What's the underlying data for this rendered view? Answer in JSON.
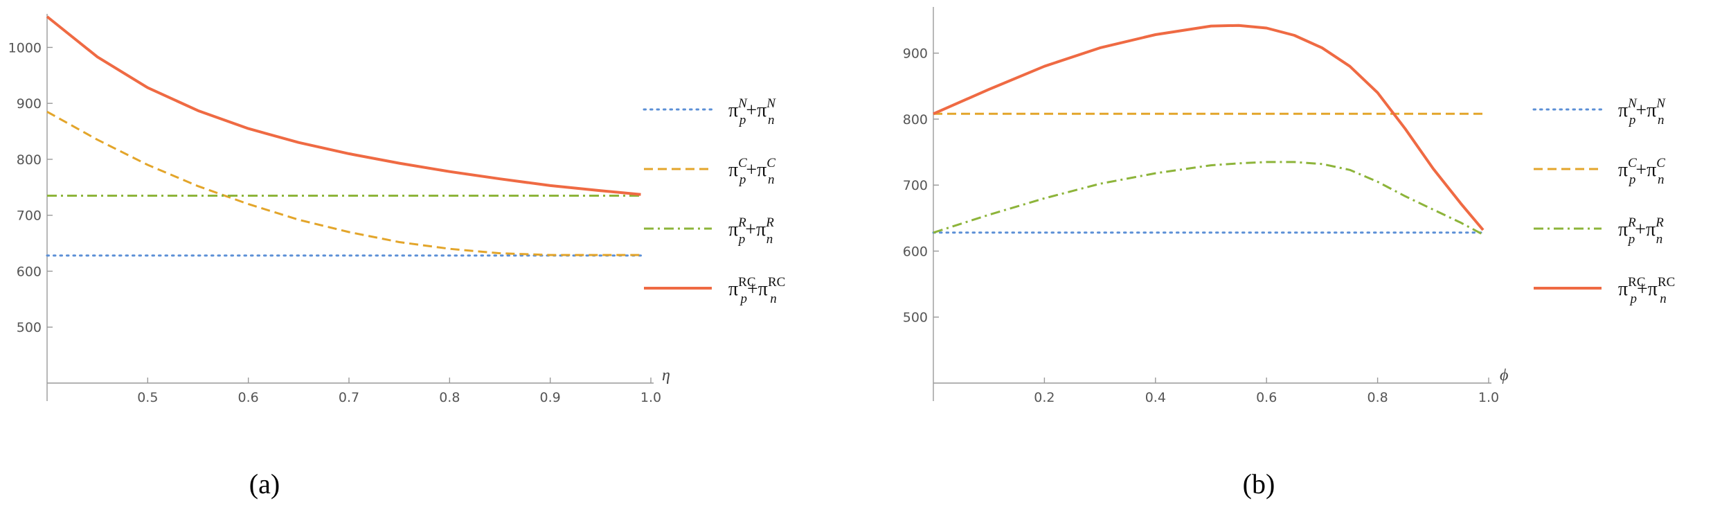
{
  "colors": {
    "series_N": "#5b8fd6",
    "series_C": "#e3a52a",
    "series_R": "#8db43a",
    "series_RC": "#ef6a43",
    "axis": "#999999"
  },
  "legend": {
    "pi": "π",
    "plus": "+",
    "sub_p": "p",
    "sub_n": "n",
    "items": [
      {
        "sup": "N",
        "style": "dotted",
        "color_key": "series_N"
      },
      {
        "sup": "C",
        "style": "dashed",
        "color_key": "series_C"
      },
      {
        "sup": "R",
        "style": "dashdot",
        "color_key": "series_R"
      },
      {
        "sup": "RC",
        "style": "solid",
        "color_key": "series_RC"
      }
    ]
  },
  "chart_data": [
    {
      "type": "line",
      "panel_label": "(a)",
      "xlabel": "η",
      "xlim": [
        0.4,
        1.0
      ],
      "ylim": [
        400,
        1060
      ],
      "x_origin_y": 400,
      "xticks": [
        "0.5",
        "0.6",
        "0.7",
        "0.8",
        "0.9",
        "1.0"
      ],
      "yticks": [
        "500",
        "600",
        "700",
        "800",
        "900",
        "1000"
      ],
      "x": [
        0.4,
        0.45,
        0.5,
        0.55,
        0.6,
        0.65,
        0.7,
        0.75,
        0.8,
        0.85,
        0.9,
        0.95,
        0.99
      ],
      "series": [
        {
          "style": "dotted",
          "values": [
            628,
            628,
            628,
            628,
            628,
            628,
            628,
            628,
            628,
            628,
            628,
            628,
            628
          ]
        },
        {
          "style": "dashed",
          "values": [
            885,
            835,
            790,
            752,
            720,
            692,
            670,
            652,
            640,
            632,
            629,
            629,
            629
          ]
        },
        {
          "style": "dashdot",
          "values": [
            735,
            735,
            735,
            735,
            735,
            735,
            735,
            735,
            735,
            735,
            735,
            735,
            735
          ]
        },
        {
          "style": "solid",
          "values": [
            1055,
            983,
            928,
            887,
            855,
            830,
            810,
            793,
            778,
            765,
            753,
            744,
            737
          ]
        }
      ]
    },
    {
      "type": "line",
      "panel_label": "(b)",
      "xlabel": "ϕ",
      "xlim": [
        0.0,
        1.0
      ],
      "ylim": [
        400,
        970
      ],
      "x_origin_y": 400,
      "xticks": [
        "0.2",
        "0.4",
        "0.6",
        "0.8",
        "1.0"
      ],
      "yticks": [
        "500",
        "600",
        "700",
        "800",
        "900"
      ],
      "x": [
        0.0,
        0.1,
        0.2,
        0.3,
        0.4,
        0.5,
        0.55,
        0.6,
        0.65,
        0.7,
        0.75,
        0.8,
        0.85,
        0.9,
        0.95,
        0.99
      ],
      "series": [
        {
          "style": "dotted",
          "values": [
            628,
            628,
            628,
            628,
            628,
            628,
            628,
            628,
            628,
            628,
            628,
            628,
            628,
            628,
            628,
            628
          ]
        },
        {
          "style": "dashed",
          "values": [
            808,
            808,
            808,
            808,
            808,
            808,
            808,
            808,
            808,
            808,
            808,
            808,
            808,
            808,
            808,
            808
          ]
        },
        {
          "style": "dashdot",
          "values": [
            628,
            655,
            680,
            702,
            718,
            730,
            733,
            735,
            735,
            732,
            723,
            705,
            683,
            663,
            643,
            625
          ]
        },
        {
          "style": "solid",
          "values": [
            808,
            845,
            880,
            908,
            928,
            941,
            942,
            938,
            927,
            908,
            880,
            840,
            785,
            725,
            672,
            632
          ]
        }
      ]
    }
  ]
}
